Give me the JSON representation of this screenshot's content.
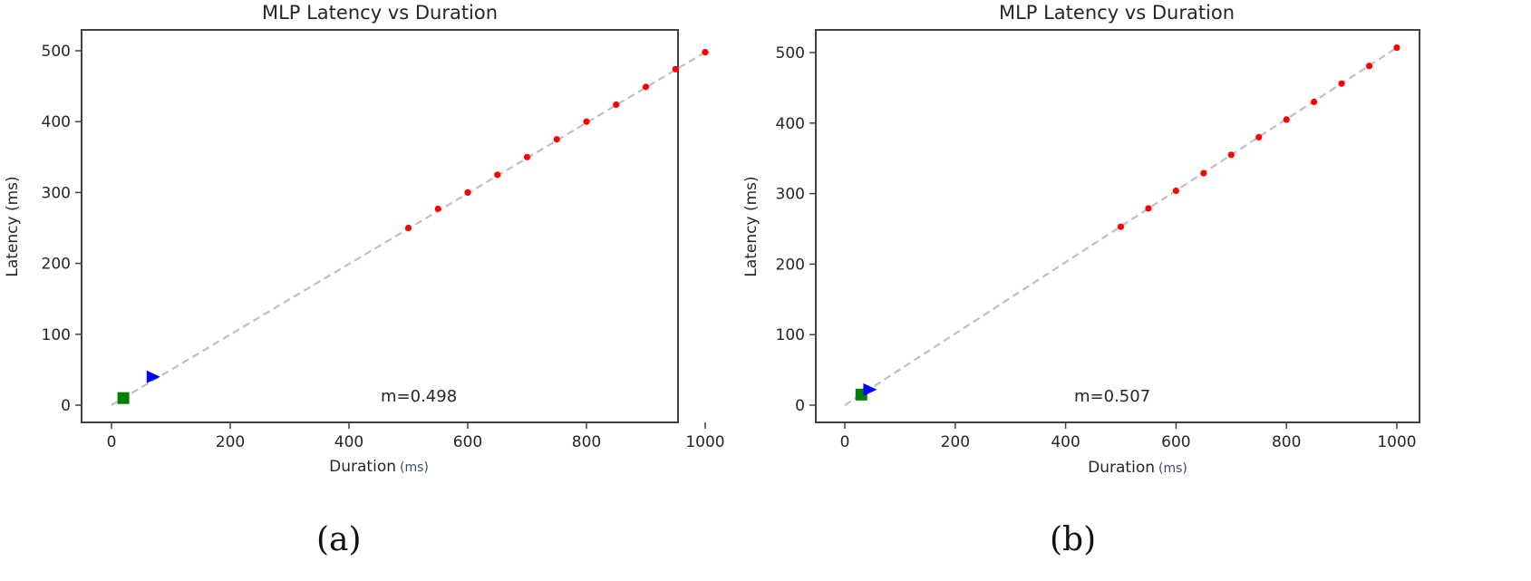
{
  "figure": {
    "captions": [
      "(a)",
      "(b)"
    ]
  },
  "panels": [
    {
      "id": "a",
      "title": "MLP Latency vs Duration",
      "xlabel": "Duration",
      "xlabel_unit": "(ms)",
      "ylabel": "Latency (ms)",
      "annotation": "m=0.498",
      "xticks": [
        "0",
        "200",
        "400",
        "600",
        "800",
        "1000"
      ],
      "yticks": [
        "0",
        "100",
        "200",
        "300",
        "400",
        "500"
      ]
    },
    {
      "id": "b",
      "title": "MLP Latency vs Duration",
      "xlabel": "Duration",
      "xlabel_unit": "(ms)",
      "ylabel": "Latency (ms)",
      "annotation": "m=0.507",
      "xticks": [
        "0",
        "200",
        "400",
        "600",
        "800",
        "1000"
      ],
      "yticks": [
        "0",
        "100",
        "200",
        "300",
        "400",
        "500"
      ]
    }
  ],
  "colors": {
    "points": "#ff0000",
    "fit_line": "#bfbfbf",
    "square_marker": "#008000",
    "triangle_marker": "#0000ff",
    "axes": "#404040"
  },
  "chart_data": [
    {
      "type": "scatter",
      "title": "MLP Latency vs Duration",
      "xlabel": "Duration (ms)",
      "ylabel": "Latency (ms)",
      "xlim": [
        -40,
        1030
      ],
      "ylim": [
        -25,
        530
      ],
      "grid": false,
      "annotation": "m=0.498",
      "series": [
        {
          "name": "measured",
          "marker": "circle",
          "color": "#ff0000",
          "x": [
            500,
            550,
            600,
            650,
            700,
            750,
            800,
            850,
            900,
            950,
            1000
          ],
          "y": [
            250,
            277,
            300,
            325,
            350,
            375,
            400,
            424,
            449,
            474,
            498
          ]
        },
        {
          "name": "fit",
          "style": "dashed",
          "color": "#bfbfbf",
          "x": [
            0,
            1000
          ],
          "y": [
            0,
            498
          ]
        },
        {
          "name": "square",
          "marker": "square",
          "color": "#008000",
          "x": [
            20
          ],
          "y": [
            10
          ]
        },
        {
          "name": "triangle",
          "marker": "triangle-right",
          "color": "#0000ff",
          "x": [
            70
          ],
          "y": [
            40
          ]
        }
      ]
    },
    {
      "type": "scatter",
      "title": "MLP Latency vs Duration",
      "xlabel": "Duration (ms)",
      "ylabel": "Latency (ms)",
      "xlim": [
        -50,
        1040
      ],
      "ylim": [
        -25,
        530
      ],
      "grid": false,
      "annotation": "m=0.507",
      "series": [
        {
          "name": "measured",
          "marker": "circle",
          "color": "#ff0000",
          "x": [
            500,
            550,
            600,
            650,
            700,
            750,
            800,
            850,
            900,
            950,
            1000
          ],
          "y": [
            253,
            279,
            304,
            329,
            355,
            380,
            405,
            430,
            456,
            481,
            507
          ]
        },
        {
          "name": "fit",
          "style": "dashed",
          "color": "#bfbfbf",
          "x": [
            0,
            1000
          ],
          "y": [
            0,
            507
          ]
        },
        {
          "name": "square",
          "marker": "square",
          "color": "#008000",
          "x": [
            30
          ],
          "y": [
            15
          ]
        },
        {
          "name": "triangle",
          "marker": "triangle-right",
          "color": "#0000ff",
          "x": [
            45
          ],
          "y": [
            22
          ]
        }
      ]
    }
  ]
}
